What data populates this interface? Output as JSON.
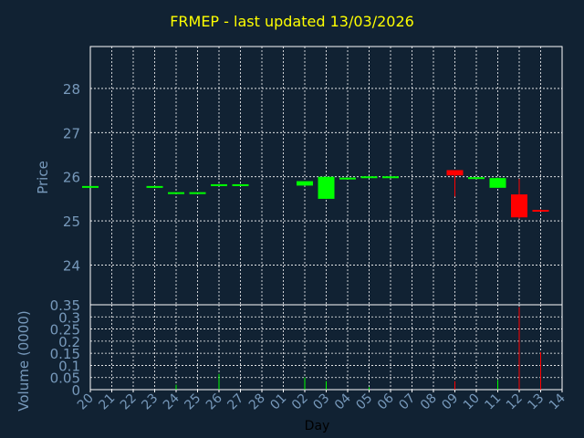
{
  "title": "FRMEP - last updated 13/03/2026",
  "colors": {
    "background": "#112233",
    "grid": "#FFFFFF",
    "axis_text": "#7799BB",
    "title": "#FFFF00",
    "up": "#00FF00",
    "down": "#FF0000"
  },
  "chart_data": [
    {
      "type": "candlestick",
      "ylabel": "Price",
      "ylim": [
        23.1,
        28.95
      ],
      "y_ticks": [
        24,
        25,
        26,
        27,
        28
      ],
      "grid": true,
      "categories": [
        "20",
        "21",
        "22",
        "23",
        "24",
        "25",
        "26",
        "27",
        "28",
        "01",
        "02",
        "03",
        "04",
        "05",
        "06",
        "07",
        "08",
        "09",
        "10",
        "11",
        "12",
        "13",
        "14"
      ],
      "candles": [
        {
          "day": "20",
          "open": 25.78,
          "high": 25.79,
          "low": 25.78,
          "close": 25.79
        },
        {
          "day": "23",
          "open": 25.78,
          "high": 25.79,
          "low": 25.78,
          "close": 25.79
        },
        {
          "day": "24",
          "open": 25.64,
          "high": 25.65,
          "low": 25.64,
          "close": 25.65
        },
        {
          "day": "25",
          "open": 25.64,
          "high": 25.65,
          "low": 25.64,
          "close": 25.65
        },
        {
          "day": "26",
          "open": 25.82,
          "high": 25.83,
          "low": 25.82,
          "close": 25.83
        },
        {
          "day": "27",
          "open": 25.82,
          "high": 25.83,
          "low": 25.82,
          "close": 25.83
        },
        {
          "day": "02",
          "open": 25.8,
          "high": 25.9,
          "low": 25.8,
          "close": 25.9
        },
        {
          "day": "03",
          "open": 25.5,
          "high": 26.0,
          "low": 25.5,
          "close": 26.0
        },
        {
          "day": "04",
          "open": 25.97,
          "high": 25.98,
          "low": 25.97,
          "close": 25.98
        },
        {
          "day": "05",
          "open": 26.0,
          "high": 26.01,
          "low": 26.0,
          "close": 26.01
        },
        {
          "day": "06",
          "open": 26.0,
          "high": 26.01,
          "low": 26.0,
          "close": 26.01
        },
        {
          "day": "09",
          "open": 26.15,
          "high": 26.15,
          "low": 25.55,
          "close": 26.03
        },
        {
          "day": "10",
          "open": 25.98,
          "high": 25.99,
          "low": 25.98,
          "close": 25.99
        },
        {
          "day": "11",
          "open": 25.75,
          "high": 25.98,
          "low": 25.75,
          "close": 25.97
        },
        {
          "day": "12",
          "open": 25.6,
          "high": 25.95,
          "low": 25.05,
          "close": 25.08
        },
        {
          "day": "13",
          "open": 25.25,
          "high": 25.26,
          "low": 25.22,
          "close": 25.23
        }
      ]
    },
    {
      "type": "bar",
      "ylabel": "Volume (0000)",
      "xlabel": "Day",
      "ylim": [
        0,
        0.35
      ],
      "y_ticks": [
        "0",
        "0.05",
        "0.1",
        "0.15",
        "0.2",
        "0.25",
        "0.3",
        "0.35"
      ],
      "grid": true,
      "categories": [
        "20",
        "21",
        "22",
        "23",
        "24",
        "25",
        "26",
        "27",
        "28",
        "01",
        "02",
        "03",
        "04",
        "05",
        "06",
        "07",
        "08",
        "09",
        "10",
        "11",
        "12",
        "13",
        "14"
      ],
      "bars": [
        {
          "day": "24",
          "value": 0.02,
          "direction": "up"
        },
        {
          "day": "26",
          "value": 0.065,
          "direction": "up"
        },
        {
          "day": "02",
          "value": 0.05,
          "direction": "up"
        },
        {
          "day": "03",
          "value": 0.035,
          "direction": "up"
        },
        {
          "day": "05",
          "value": 0.01,
          "direction": "up"
        },
        {
          "day": "09",
          "value": 0.035,
          "direction": "down"
        },
        {
          "day": "11",
          "value": 0.04,
          "direction": "up"
        },
        {
          "day": "12",
          "value": 0.34,
          "direction": "down"
        },
        {
          "day": "13",
          "value": 0.155,
          "direction": "down"
        }
      ]
    }
  ]
}
